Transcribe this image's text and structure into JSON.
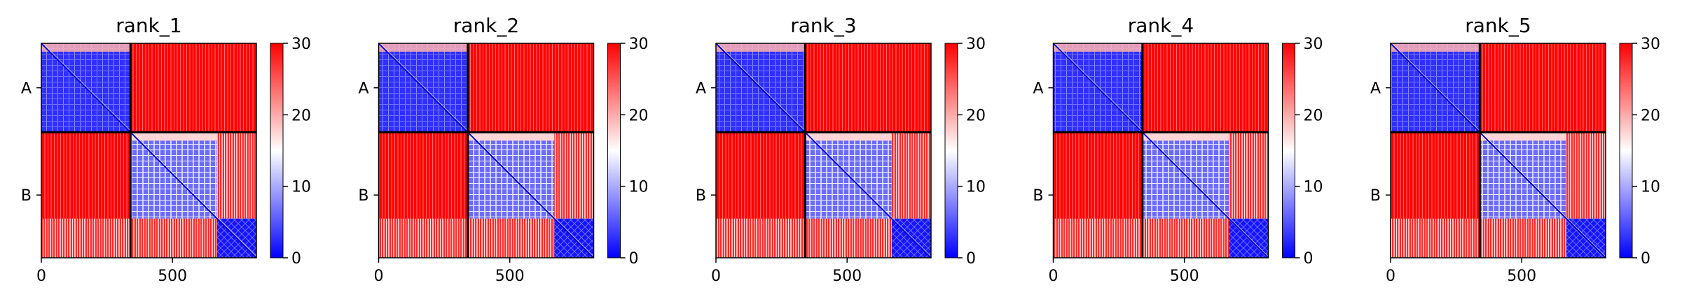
{
  "chart_data": [
    {
      "type": "heatmap",
      "title": "rank_1",
      "chains": [
        "A",
        "B"
      ],
      "chain_boundaries": [
        0,
        340,
        820
      ],
      "xticks": [
        0,
        500
      ],
      "xlim": [
        0,
        820
      ],
      "colorbar": {
        "min": 0,
        "max": 30,
        "ticks": [
          0,
          10,
          20,
          30
        ],
        "colors": [
          "#0000ff",
          "#ffffff",
          "#ff0000"
        ]
      },
      "domain_blocks": [
        [
          340,
          670
        ],
        [
          670,
          820
        ]
      ]
    },
    {
      "type": "heatmap",
      "title": "rank_2",
      "chains": [
        "A",
        "B"
      ],
      "chain_boundaries": [
        0,
        340,
        820
      ],
      "xticks": [
        0,
        500
      ],
      "xlim": [
        0,
        820
      ],
      "colorbar": {
        "min": 0,
        "max": 30,
        "ticks": [
          0,
          10,
          20,
          30
        ],
        "colors": [
          "#0000ff",
          "#ffffff",
          "#ff0000"
        ]
      },
      "domain_blocks": [
        [
          340,
          670
        ],
        [
          670,
          820
        ]
      ]
    },
    {
      "type": "heatmap",
      "title": "rank_3",
      "chains": [
        "A",
        "B"
      ],
      "chain_boundaries": [
        0,
        340,
        820
      ],
      "xticks": [
        0,
        500
      ],
      "xlim": [
        0,
        820
      ],
      "colorbar": {
        "min": 0,
        "max": 30,
        "ticks": [
          0,
          10,
          20,
          30
        ],
        "colors": [
          "#0000ff",
          "#ffffff",
          "#ff0000"
        ]
      },
      "domain_blocks": [
        [
          340,
          670
        ],
        [
          670,
          820
        ]
      ]
    },
    {
      "type": "heatmap",
      "title": "rank_4",
      "chains": [
        "A",
        "B"
      ],
      "chain_boundaries": [
        0,
        340,
        820
      ],
      "xticks": [
        0,
        500
      ],
      "xlim": [
        0,
        820
      ],
      "colorbar": {
        "min": 0,
        "max": 30,
        "ticks": [
          0,
          10,
          20,
          30
        ],
        "colors": [
          "#0000ff",
          "#ffffff",
          "#ff0000"
        ]
      },
      "domain_blocks": [
        [
          340,
          670
        ],
        [
          670,
          820
        ]
      ]
    },
    {
      "type": "heatmap",
      "title": "rank_5",
      "chains": [
        "A",
        "B"
      ],
      "chain_boundaries": [
        0,
        340,
        820
      ],
      "xticks": [
        0,
        500
      ],
      "xlim": [
        0,
        820
      ],
      "colorbar": {
        "min": 0,
        "max": 30,
        "ticks": [
          0,
          10,
          20,
          30
        ],
        "colors": [
          "#0000ff",
          "#ffffff",
          "#ff0000"
        ]
      },
      "domain_blocks": [
        [
          340,
          670
        ],
        [
          670,
          820
        ]
      ]
    }
  ]
}
